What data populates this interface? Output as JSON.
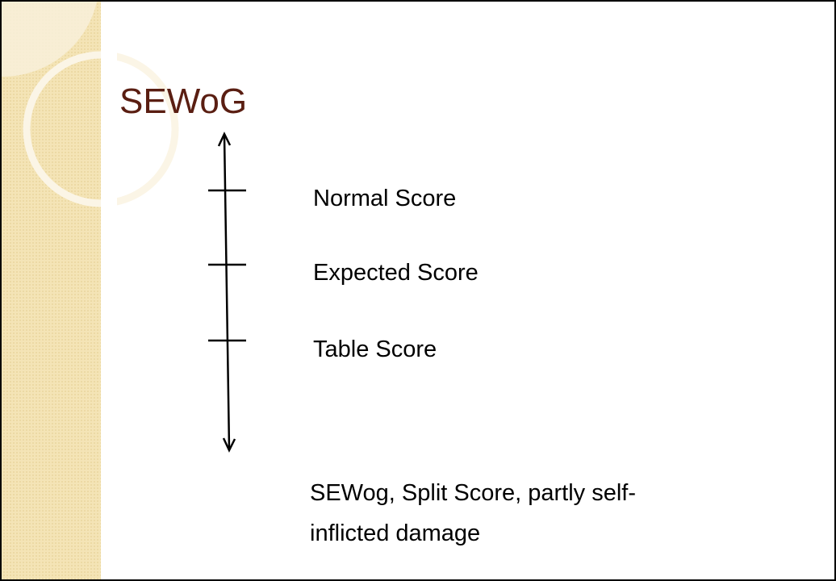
{
  "title": "SEWoG",
  "scale_labels": [
    "Normal Score",
    "Expected Score",
    "Table Score"
  ],
  "note_lines": [
    "SEWog, Split Score, partly self-",
    "inflicted damage"
  ]
}
